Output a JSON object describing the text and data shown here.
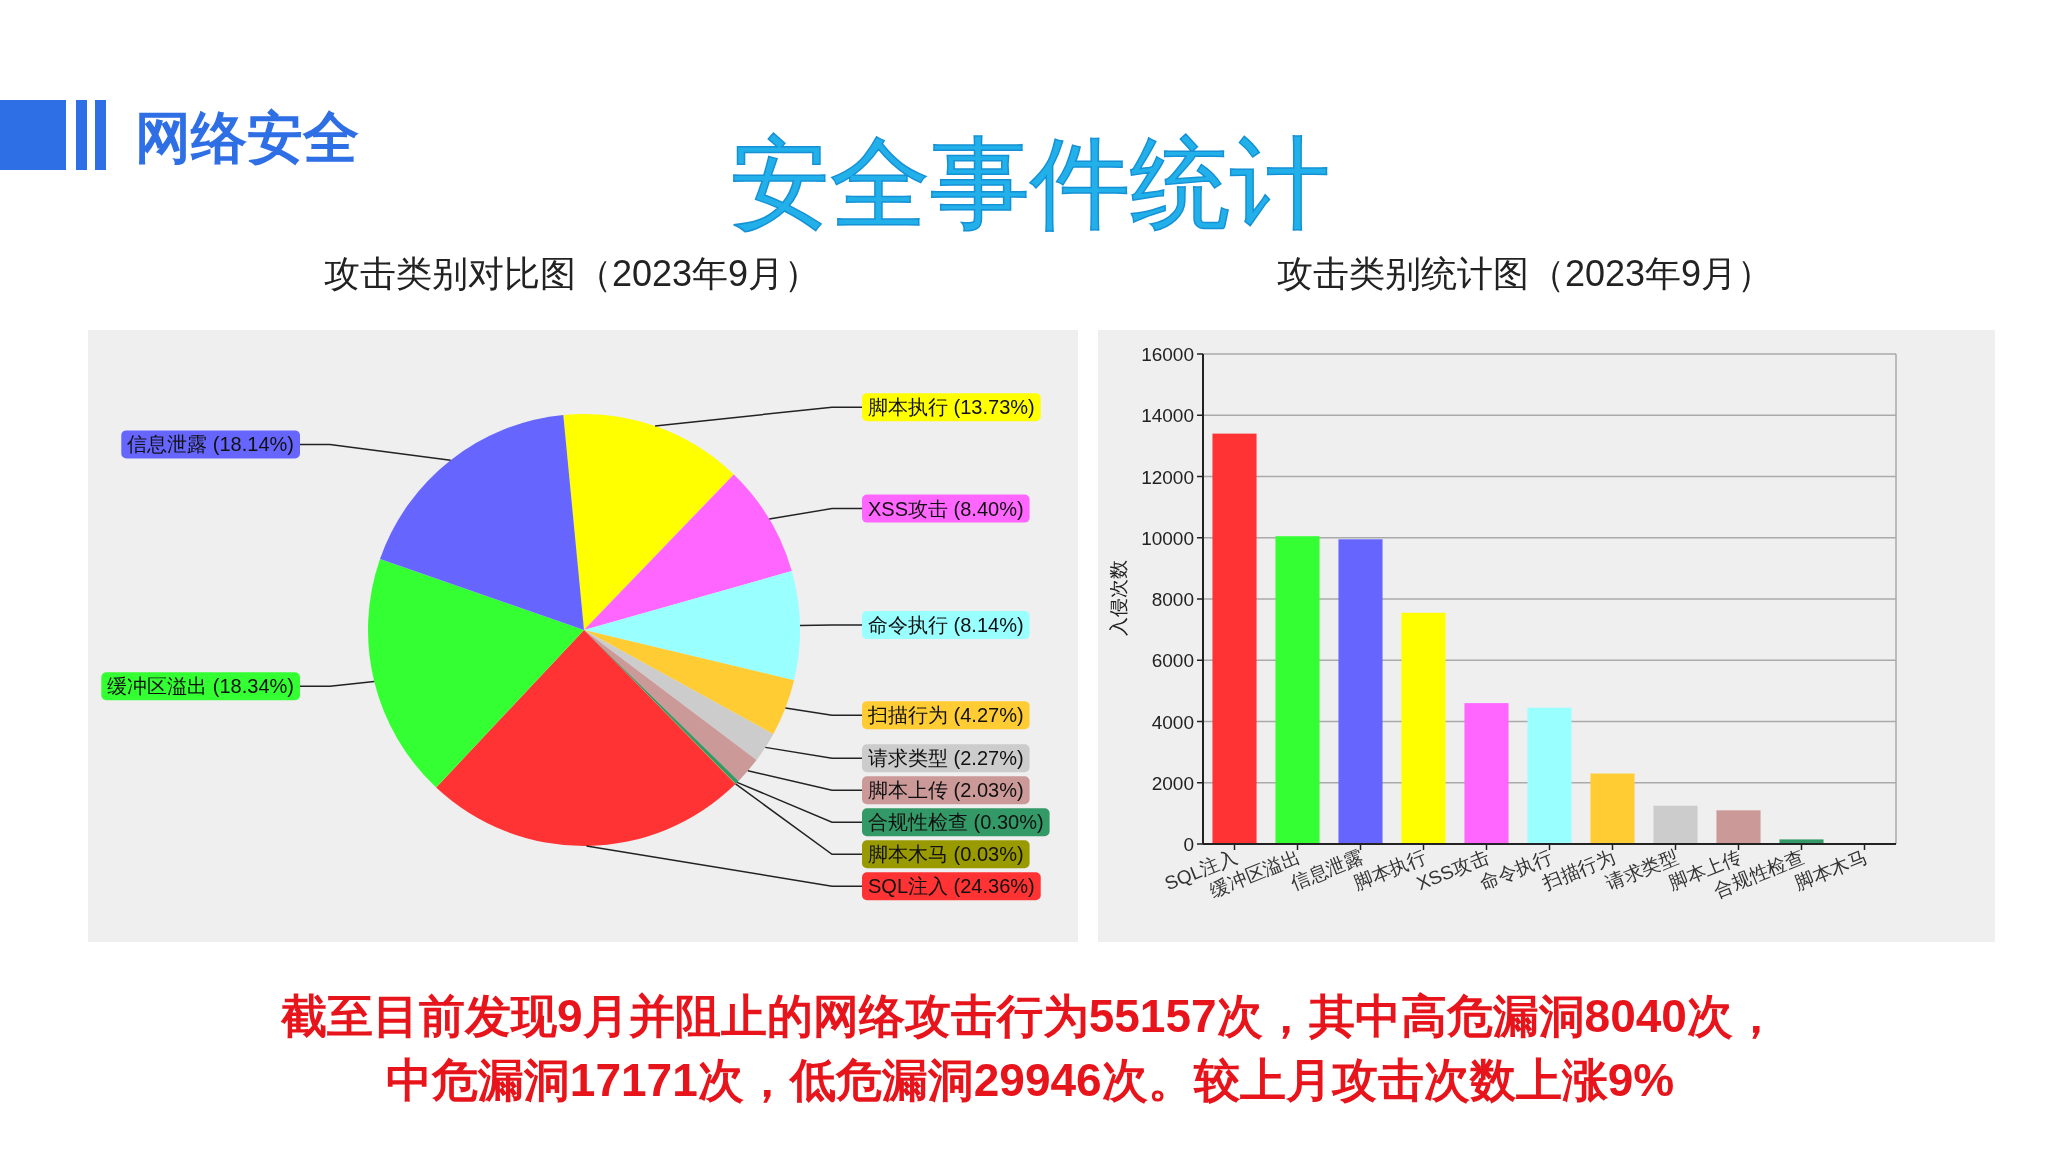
{
  "chart_data": [
    {
      "type": "other",
      "title": "安全事件统计",
      "subtitle": "网络安全",
      "annotations": [
        "截至目前发现9月并阻止的网络攻击行为55157次，其中高危漏洞8040次，",
        "中危漏洞17171次，低危漏洞29946次。较上月攻击次数上涨9%"
      ]
    },
    {
      "type": "pie",
      "title": "攻击类别对比图（2023年9月）",
      "categories": [
        "脚本执行",
        "XSS攻击",
        "命令执行",
        "扫描行为",
        "请求类型",
        "脚本上传",
        "合规性检查",
        "脚本木马",
        "SQL注入",
        "缓冲区溢出",
        "信息泄露"
      ],
      "values": [
        13.73,
        8.4,
        8.14,
        4.27,
        2.27,
        2.03,
        0.3,
        0.03,
        24.36,
        18.34,
        18.14
      ],
      "value_labels": [
        "(13.73%)",
        "(8.40%)",
        "(8.14%)",
        "(4.27%)",
        "(2.27%)",
        "(2.03%)",
        "(0.30%)",
        "(0.03%)",
        "(24.36%)",
        "(18.34%)",
        "(18.14%)"
      ],
      "colors": [
        "#ffff00",
        "#ff66ff",
        "#99ffff",
        "#ffcc33",
        "#cccccc",
        "#cc9999",
        "#339966",
        "#999900",
        "#ff3333",
        "#33ff33",
        "#6666ff"
      ]
    },
    {
      "type": "bar",
      "title": "攻击类别统计图（2023年9月）",
      "ylabel": "入侵次数",
      "categories": [
        "SQL注入",
        "缓冲区溢出",
        "信息泄露",
        "脚本执行",
        "XSS攻击",
        "命令执行",
        "扫描行为",
        "请求类型",
        "脚本上传",
        "合规性检查",
        "脚本木马"
      ],
      "values": [
        13400,
        10050,
        9950,
        7550,
        4600,
        4450,
        2300,
        1250,
        1100,
        150,
        20
      ],
      "colors": [
        "#ff3333",
        "#33ff33",
        "#6666ff",
        "#ffff00",
        "#ff66ff",
        "#99ffff",
        "#ffcc33",
        "#cccccc",
        "#cc9999",
        "#339966",
        "#999900"
      ],
      "ylim": [
        0,
        16000
      ],
      "yticks": [
        0,
        2000,
        4000,
        6000,
        8000,
        10000,
        12000,
        14000,
        16000
      ],
      "grid": "y"
    }
  ]
}
